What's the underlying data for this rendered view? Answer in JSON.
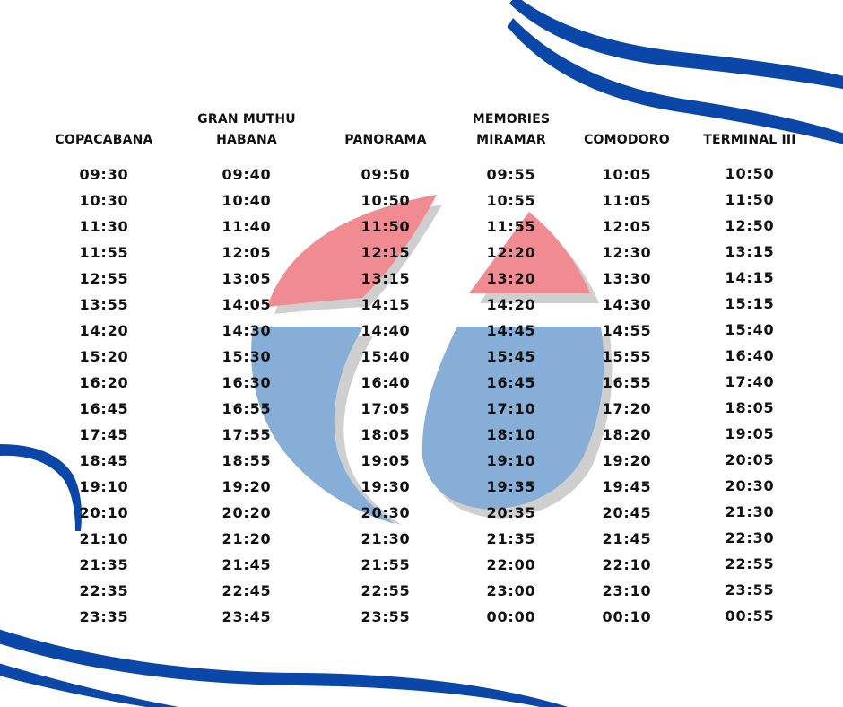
{
  "colors": {
    "blue_stroke": "#0a47a8",
    "logo_red": "#f08b92",
    "logo_blue": "#86aed6",
    "logo_shadow": "#cfcfcf",
    "text": "#111111"
  },
  "logo": {
    "icon": "stylized-teardrop-logo"
  },
  "columns": [
    {
      "header_lines": [
        "COPACABANA"
      ],
      "times": [
        "09:30",
        "10:30",
        "11:30",
        "11:55",
        "12:55",
        "13:55",
        "14:20",
        "15:20",
        "16:20",
        "16:45",
        "17:45",
        "18:45",
        "19:10",
        "20:10",
        "21:10",
        "21:35",
        "22:35",
        "23:35"
      ]
    },
    {
      "header_lines": [
        "GRAN MUTHU",
        "HABANA"
      ],
      "times": [
        "09:40",
        "10:40",
        "11:40",
        "12:05",
        "13:05",
        "14:05",
        "14:30",
        "15:30",
        "16:30",
        "16:55",
        "17:55",
        "18:55",
        "19:20",
        "20:20",
        "21:20",
        "21:45",
        "22:45",
        "23:45"
      ]
    },
    {
      "header_lines": [
        "PANORAMA"
      ],
      "times": [
        "09:50",
        "10:50",
        "11:50",
        "12:15",
        "13:15",
        "14:15",
        "14:40",
        "15:40",
        "16:40",
        "17:05",
        "18:05",
        "19:05",
        "19:30",
        "20:30",
        "21:30",
        "21:55",
        "22:55",
        "23:55"
      ]
    },
    {
      "header_lines": [
        "MEMORIES",
        "MIRAMAR"
      ],
      "times": [
        "09:55",
        "10:55",
        "11:55",
        "12:20",
        "13:20",
        "14:20",
        "14:45",
        "15:45",
        "16:45",
        "17:10",
        "18:10",
        "19:10",
        "19:35",
        "20:35",
        "21:35",
        "22:00",
        "23:00",
        "00:00"
      ]
    },
    {
      "header_lines": [
        "COMODORO"
      ],
      "times": [
        "10:05",
        "11:05",
        "12:05",
        "12:30",
        "13:30",
        "14:30",
        "14:55",
        "15:55",
        "16:55",
        "17:20",
        "18:20",
        "19:20",
        "19:45",
        "20:45",
        "21:45",
        "22:10",
        "23:10",
        "00:10"
      ]
    },
    {
      "header_lines": [
        "TERMINAL III"
      ],
      "times": [
        "10:50",
        "11:50",
        "12:50",
        "13:15",
        "14:15",
        "15:15",
        "15:40",
        "16:40",
        "17:40",
        "18:05",
        "19:05",
        "20:05",
        "20:30",
        "21:30",
        "22:30",
        "22:55",
        "23:55",
        "00:55"
      ]
    }
  ]
}
